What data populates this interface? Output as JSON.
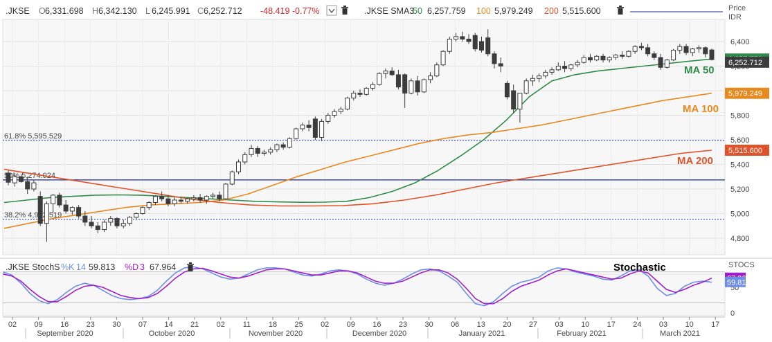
{
  "main_header": {
    "symbol": ".JKSE",
    "open_label": "O",
    "open": "6,331.698",
    "high_label": "H",
    "high": "6,342.130",
    "low_label": "L",
    "low": "6,245.991",
    "close_label": "C",
    "close": "6,252.712",
    "change": "-48.419 -0.77%",
    "sma_label": ".JKSE SMA3",
    "sma1_period": "50",
    "sma1_value": "6,257.759",
    "sma2_period": "100",
    "sma2_value": "5,979.249",
    "sma3_period": "200",
    "sma3_value": "5,515.600"
  },
  "price_axis": {
    "title": "Price",
    "unit": "IDR",
    "ticks": [
      {
        "label": "6,400",
        "value": 6400
      },
      {
        "label": "6,200",
        "value": 6200
      },
      {
        "label": "6,000",
        "value": 6000
      },
      {
        "label": "5,800",
        "value": 5800
      },
      {
        "label": "5,600",
        "value": 5600
      },
      {
        "label": "5,400",
        "value": 5400
      },
      {
        "label": "5,200",
        "value": 5200
      },
      {
        "label": "5,000",
        "value": 5000
      },
      {
        "label": "4,800",
        "value": 4800
      }
    ],
    "badges": [
      {
        "label": "6,257.759",
        "value": 6257.759,
        "color": "#2e8b47"
      },
      {
        "label": "6,252.712",
        "value": 6232,
        "color": "#3c3c3c"
      },
      {
        "label": "5,979.249",
        "value": 5979.249,
        "color": "#e8891e"
      },
      {
        "label": "5,515.600",
        "value": 5515.6,
        "color": "#e0532a"
      }
    ]
  },
  "fib_levels": [
    {
      "label": "61.8%  5,595.529",
      "value": 5595.529,
      "style": "dotted",
      "color": "#3a4fb3"
    },
    {
      "label": "50%  5,274.024",
      "value": 5274.024,
      "style": "solid",
      "color": "#1c2a8c"
    },
    {
      "label": "38.2%  4,952.519",
      "value": 4952.519,
      "style": "dotted",
      "color": "#3a4fb3"
    }
  ],
  "ma_annotations": [
    {
      "label": "MA 50",
      "color": "#2e8b47"
    },
    {
      "label": "MA 100",
      "color": "#e8891e"
    },
    {
      "label": "MA 200",
      "color": "#e0532a"
    }
  ],
  "stoch_header": {
    "symbol": ".JKSE StochS",
    "k_label": "%K",
    "k_period": "14",
    "k_value": "59.813",
    "d_label": "%D",
    "d_period": "3",
    "d_value": "67.964"
  },
  "stoch_axis": {
    "title": "STOCS",
    "ticks": [
      {
        "label": "50",
        "value": 50
      },
      {
        "label": "0",
        "value": 0
      }
    ],
    "badges": [
      {
        "label": "67.964",
        "value": 67.964,
        "color": "#a020c8"
      },
      {
        "label": "59.813",
        "value": 59.813,
        "color": "#6f8fe6"
      }
    ]
  },
  "stoch_annotation": "Stochastic",
  "x_axis": {
    "day_ticks": [
      "02",
      "09",
      "16",
      "23",
      "30",
      "07",
      "14",
      "21",
      "02",
      "11",
      "18",
      "25",
      "02",
      "09",
      "16",
      "23",
      "30",
      "06",
      "13",
      "20",
      "27",
      "03",
      "10",
      "17",
      "24",
      "03",
      "10",
      "17"
    ],
    "months": [
      "September 2020",
      "October 2020",
      "November 2020",
      "December 2020",
      "January 2021",
      "February 2021",
      "March 2021"
    ]
  },
  "colors": {
    "ma50": "#2e8b47",
    "ma100": "#e8891e",
    "ma200": "#e0532a",
    "stoch_k": "#6f8fe6",
    "stoch_d": "#a020c8",
    "candle_up": "#ffffff",
    "candle_down": "#3c3c3c"
  },
  "chart_data": [
    {
      "type": "candlestick",
      "title": ".JKSE",
      "ylabel": "Price IDR",
      "ylim": [
        4700,
        6650
      ],
      "grid": true,
      "series_candles": [
        {
          "o": 5330,
          "h": 5350,
          "l": 5230,
          "c": 5255
        },
        {
          "o": 5250,
          "h": 5330,
          "l": 5220,
          "c": 5300
        },
        {
          "o": 5300,
          "h": 5320,
          "l": 5250,
          "c": 5260
        },
        {
          "o": 5260,
          "h": 5300,
          "l": 5160,
          "c": 5200
        },
        {
          "o": 5200,
          "h": 5270,
          "l": 5180,
          "c": 5250
        },
        {
          "o": 5140,
          "h": 5180,
          "l": 4900,
          "c": 4920
        },
        {
          "o": 4920,
          "h": 5100,
          "l": 4770,
          "c": 5080
        },
        {
          "o": 5080,
          "h": 5160,
          "l": 5000,
          "c": 5150
        },
        {
          "o": 5150,
          "h": 5170,
          "l": 5050,
          "c": 5070
        },
        {
          "o": 5070,
          "h": 5110,
          "l": 5000,
          "c": 5020
        },
        {
          "o": 5020,
          "h": 5060,
          "l": 4990,
          "c": 5050
        },
        {
          "o": 5050,
          "h": 5070,
          "l": 4960,
          "c": 4980
        },
        {
          "o": 4980,
          "h": 5020,
          "l": 4900,
          "c": 4930
        },
        {
          "o": 4930,
          "h": 4980,
          "l": 4880,
          "c": 4900
        },
        {
          "o": 4900,
          "h": 4930,
          "l": 4840,
          "c": 4870
        },
        {
          "o": 4870,
          "h": 4950,
          "l": 4850,
          "c": 4930
        },
        {
          "o": 4930,
          "h": 4980,
          "l": 4900,
          "c": 4960
        },
        {
          "o": 4960,
          "h": 4970,
          "l": 4880,
          "c": 4900
        },
        {
          "o": 4900,
          "h": 4950,
          "l": 4880,
          "c": 4920
        },
        {
          "o": 4920,
          "h": 4980,
          "l": 4900,
          "c": 4970
        },
        {
          "o": 4970,
          "h": 5010,
          "l": 4950,
          "c": 5000
        },
        {
          "o": 5000,
          "h": 5060,
          "l": 4990,
          "c": 5050
        },
        {
          "o": 5050,
          "h": 5100,
          "l": 5030,
          "c": 5090
        },
        {
          "o": 5090,
          "h": 5150,
          "l": 5070,
          "c": 5140
        },
        {
          "o": 5140,
          "h": 5180,
          "l": 5100,
          "c": 5120
        },
        {
          "o": 5120,
          "h": 5150,
          "l": 5060,
          "c": 5080
        },
        {
          "o": 5080,
          "h": 5130,
          "l": 5060,
          "c": 5110
        },
        {
          "o": 5110,
          "h": 5140,
          "l": 5080,
          "c": 5100
        },
        {
          "o": 5100,
          "h": 5130,
          "l": 5080,
          "c": 5120
        },
        {
          "o": 5120,
          "h": 5150,
          "l": 5100,
          "c": 5130
        },
        {
          "o": 5130,
          "h": 5160,
          "l": 5090,
          "c": 5110
        },
        {
          "o": 5110,
          "h": 5150,
          "l": 5080,
          "c": 5140
        },
        {
          "o": 5140,
          "h": 5170,
          "l": 5120,
          "c": 5150
        },
        {
          "o": 5150,
          "h": 5180,
          "l": 5100,
          "c": 5120
        },
        {
          "o": 5120,
          "h": 5250,
          "l": 5110,
          "c": 5240
        },
        {
          "o": 5240,
          "h": 5350,
          "l": 5230,
          "c": 5340
        },
        {
          "o": 5340,
          "h": 5440,
          "l": 5320,
          "c": 5420
        },
        {
          "o": 5420,
          "h": 5500,
          "l": 5400,
          "c": 5480
        },
        {
          "o": 5480,
          "h": 5560,
          "l": 5460,
          "c": 5530
        },
        {
          "o": 5530,
          "h": 5550,
          "l": 5460,
          "c": 5490
        },
        {
          "o": 5490,
          "h": 5520,
          "l": 5470,
          "c": 5500
        },
        {
          "o": 5500,
          "h": 5540,
          "l": 5480,
          "c": 5520
        },
        {
          "o": 5520,
          "h": 5570,
          "l": 5500,
          "c": 5560
        },
        {
          "o": 5560,
          "h": 5580,
          "l": 5520,
          "c": 5540
        },
        {
          "o": 5540,
          "h": 5620,
          "l": 5530,
          "c": 5610
        },
        {
          "o": 5610,
          "h": 5700,
          "l": 5600,
          "c": 5690
        },
        {
          "o": 5690,
          "h": 5740,
          "l": 5670,
          "c": 5720
        },
        {
          "o": 5720,
          "h": 5760,
          "l": 5670,
          "c": 5700
        },
        {
          "o": 5770,
          "h": 5790,
          "l": 5600,
          "c": 5620
        },
        {
          "o": 5620,
          "h": 5770,
          "l": 5590,
          "c": 5750
        },
        {
          "o": 5750,
          "h": 5820,
          "l": 5730,
          "c": 5800
        },
        {
          "o": 5800,
          "h": 5850,
          "l": 5780,
          "c": 5830
        },
        {
          "o": 5830,
          "h": 5870,
          "l": 5810,
          "c": 5850
        },
        {
          "o": 5850,
          "h": 5950,
          "l": 5840,
          "c": 5940
        },
        {
          "o": 5940,
          "h": 6000,
          "l": 5920,
          "c": 5980
        },
        {
          "o": 5980,
          "h": 6010,
          "l": 5950,
          "c": 5970
        },
        {
          "o": 5970,
          "h": 6030,
          "l": 5960,
          "c": 6020
        },
        {
          "o": 6020,
          "h": 6070,
          "l": 6000,
          "c": 6050
        },
        {
          "o": 6050,
          "h": 6150,
          "l": 6040,
          "c": 6140
        },
        {
          "o": 6140,
          "h": 6180,
          "l": 6100,
          "c": 6160
        },
        {
          "o": 6160,
          "h": 6190,
          "l": 6120,
          "c": 6130
        },
        {
          "o": 6130,
          "h": 6170,
          "l": 6010,
          "c": 6030
        },
        {
          "o": 6130,
          "h": 6140,
          "l": 5860,
          "c": 5980
        },
        {
          "o": 5980,
          "h": 6100,
          "l": 5970,
          "c": 6080
        },
        {
          "o": 6080,
          "h": 6120,
          "l": 5960,
          "c": 5990
        },
        {
          "o": 5990,
          "h": 6100,
          "l": 5980,
          "c": 6090
        },
        {
          "o": 6090,
          "h": 6150,
          "l": 6060,
          "c": 6120
        },
        {
          "o": 6120,
          "h": 6230,
          "l": 6110,
          "c": 6210
        },
        {
          "o": 6210,
          "h": 6330,
          "l": 6200,
          "c": 6320
        },
        {
          "o": 6320,
          "h": 6440,
          "l": 6300,
          "c": 6420
        },
        {
          "o": 6420,
          "h": 6470,
          "l": 6400,
          "c": 6440
        },
        {
          "o": 6440,
          "h": 6480,
          "l": 6400,
          "c": 6420
        },
        {
          "o": 6420,
          "h": 6460,
          "l": 6380,
          "c": 6400
        },
        {
          "o": 6450,
          "h": 6470,
          "l": 6320,
          "c": 6340
        },
        {
          "o": 6400,
          "h": 6440,
          "l": 6310,
          "c": 6330
        },
        {
          "o": 6430,
          "h": 6500,
          "l": 6280,
          "c": 6300
        },
        {
          "o": 6300,
          "h": 6320,
          "l": 6180,
          "c": 6220
        },
        {
          "o": 6220,
          "h": 6270,
          "l": 6150,
          "c": 6200
        },
        {
          "o": 6060,
          "h": 6080,
          "l": 5930,
          "c": 5950
        },
        {
          "o": 6000,
          "h": 6050,
          "l": 5820,
          "c": 5850
        },
        {
          "o": 5850,
          "h": 5880,
          "l": 5740,
          "c": 5980
        },
        {
          "o": 5980,
          "h": 6100,
          "l": 5970,
          "c": 6080
        },
        {
          "o": 6080,
          "h": 6130,
          "l": 6040,
          "c": 6100
        },
        {
          "o": 6100,
          "h": 6140,
          "l": 6070,
          "c": 6120
        },
        {
          "o": 6120,
          "h": 6170,
          "l": 6100,
          "c": 6150
        },
        {
          "o": 6150,
          "h": 6190,
          "l": 6130,
          "c": 6170
        },
        {
          "o": 6170,
          "h": 6230,
          "l": 6160,
          "c": 6200
        },
        {
          "o": 6200,
          "h": 6240,
          "l": 6150,
          "c": 6180
        },
        {
          "o": 6180,
          "h": 6220,
          "l": 6160,
          "c": 6210
        },
        {
          "o": 6210,
          "h": 6250,
          "l": 6190,
          "c": 6230
        },
        {
          "o": 6230,
          "h": 6290,
          "l": 6220,
          "c": 6270
        },
        {
          "o": 6270,
          "h": 6300,
          "l": 6230,
          "c": 6250
        },
        {
          "o": 6250,
          "h": 6290,
          "l": 6240,
          "c": 6280
        },
        {
          "o": 6280,
          "h": 6300,
          "l": 6230,
          "c": 6250
        },
        {
          "o": 6250,
          "h": 6280,
          "l": 6230,
          "c": 6270
        },
        {
          "o": 6270,
          "h": 6300,
          "l": 6250,
          "c": 6290
        },
        {
          "o": 6290,
          "h": 6320,
          "l": 6260,
          "c": 6280
        },
        {
          "o": 6280,
          "h": 6330,
          "l": 6270,
          "c": 6320
        },
        {
          "o": 6320,
          "h": 6370,
          "l": 6300,
          "c": 6360
        },
        {
          "o": 6360,
          "h": 6390,
          "l": 6330,
          "c": 6350
        },
        {
          "o": 6350,
          "h": 6380,
          "l": 6280,
          "c": 6300
        },
        {
          "o": 6300,
          "h": 6320,
          "l": 6250,
          "c": 6270
        },
        {
          "o": 6270,
          "h": 6300,
          "l": 6170,
          "c": 6190
        },
        {
          "o": 6190,
          "h": 6260,
          "l": 6180,
          "c": 6250
        },
        {
          "o": 6250,
          "h": 6340,
          "l": 6240,
          "c": 6330
        },
        {
          "o": 6330,
          "h": 6380,
          "l": 6300,
          "c": 6360
        },
        {
          "o": 6360,
          "h": 6380,
          "l": 6290,
          "c": 6310
        },
        {
          "o": 6310,
          "h": 6350,
          "l": 6280,
          "c": 6340
        },
        {
          "o": 6340,
          "h": 6370,
          "l": 6310,
          "c": 6350
        },
        {
          "o": 6350,
          "h": 6360,
          "l": 6270,
          "c": 6300
        },
        {
          "o": 6331.698,
          "h": 6342.13,
          "l": 6245.991,
          "c": 6252.712
        }
      ],
      "series": [
        {
          "name": "SMA 50",
          "values": [
            5090,
            5110,
            5130,
            5140,
            5150,
            5152,
            5150,
            5140,
            5130,
            5120,
            5110,
            5100,
            5095,
            5092,
            5093,
            5100,
            5130,
            5180,
            5250,
            5350,
            5470,
            5600,
            5760,
            5950,
            6080,
            6130,
            6160,
            6180,
            6200,
            6220,
            6240,
            6257.759
          ]
        },
        {
          "name": "SMA 100",
          "values": [
            4880,
            4920,
            4960,
            4990,
            5020,
            5050,
            5070,
            5080,
            5090,
            5110,
            5160,
            5230,
            5300,
            5360,
            5420,
            5470,
            5520,
            5570,
            5610,
            5640,
            5660,
            5690,
            5720,
            5760,
            5800,
            5840,
            5880,
            5920,
            5950,
            5979.249
          ]
        },
        {
          "name": "SMA 200",
          "values": [
            5360,
            5320,
            5280,
            5240,
            5200,
            5160,
            5120,
            5090,
            5070,
            5062,
            5062,
            5065,
            5080,
            5110,
            5150,
            5200,
            5250,
            5290,
            5330,
            5370,
            5410,
            5450,
            5490,
            5515.6
          ]
        }
      ]
    },
    {
      "type": "line",
      "title": ".JKSE StochS",
      "ylim": [
        0,
        100
      ],
      "series": [
        {
          "name": "%K",
          "values": [
            80,
            74,
            58,
            38,
            24,
            18,
            26,
            40,
            52,
            58,
            54,
            44,
            34,
            28,
            26,
            28,
            32,
            44,
            62,
            78,
            88,
            90,
            86,
            78,
            70,
            66,
            68,
            76,
            84,
            88,
            88,
            86,
            80,
            74,
            72,
            76,
            82,
            84,
            82,
            76,
            66,
            58,
            54,
            58,
            66,
            76,
            84,
            86,
            82,
            72,
            60,
            38,
            18,
            14,
            22,
            38,
            52,
            60,
            64,
            70,
            82,
            88,
            86,
            80,
            76,
            72,
            66,
            64,
            72,
            82,
            84,
            72,
            48,
            34,
            38,
            52,
            60,
            62,
            59.813
          ]
        },
        {
          "name": "%D",
          "values": [
            76,
            72,
            62,
            46,
            32,
            22,
            22,
            32,
            44,
            52,
            54,
            50,
            42,
            34,
            30,
            28,
            30,
            38,
            52,
            68,
            80,
            86,
            87,
            82,
            76,
            70,
            68,
            72,
            78,
            84,
            86,
            86,
            82,
            78,
            74,
            74,
            78,
            82,
            82,
            78,
            70,
            62,
            58,
            58,
            62,
            70,
            78,
            84,
            84,
            78,
            66,
            48,
            28,
            18,
            18,
            28,
            42,
            52,
            58,
            64,
            74,
            82,
            86,
            82,
            78,
            74,
            70,
            66,
            68,
            76,
            82,
            78,
            62,
            46,
            40,
            46,
            54,
            60,
            67.964
          ]
        }
      ]
    }
  ]
}
